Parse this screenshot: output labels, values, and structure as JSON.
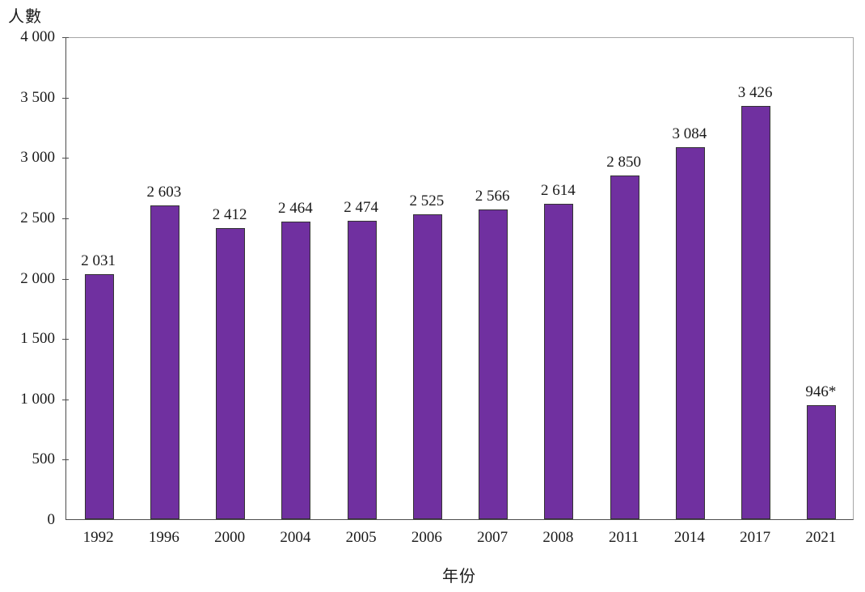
{
  "chart_data": {
    "type": "bar",
    "title": "",
    "xlabel": "年份",
    "ylabel": "人數",
    "categories": [
      "1992",
      "1996",
      "2000",
      "2004",
      "2005",
      "2006",
      "2007",
      "2008",
      "2011",
      "2014",
      "2017",
      "2021"
    ],
    "values": [
      2031,
      2603,
      2412,
      2464,
      2474,
      2525,
      2566,
      2614,
      2850,
      3084,
      3426,
      946
    ],
    "value_labels": [
      "2 031",
      "2 603",
      "2 412",
      "2 464",
      "2 474",
      "2 525",
      "2 566",
      "2 614",
      "2 850",
      "3 084",
      "3 426",
      "946*"
    ],
    "ylim": [
      0,
      4000
    ],
    "ytick_step": 500,
    "ytick_labels": [
      "0",
      "500",
      "1 000",
      "1 500",
      "2 000",
      "2 500",
      "3 000",
      "3 500",
      "4 000"
    ],
    "grid": "off",
    "legend": "none",
    "bar_fill_color": "#7030A0",
    "bar_border_color": "#333333",
    "axis_line_color": "#4d4d4d",
    "plot_border_color": "#a6a6a6",
    "text_color": "#1a1a1a"
  }
}
